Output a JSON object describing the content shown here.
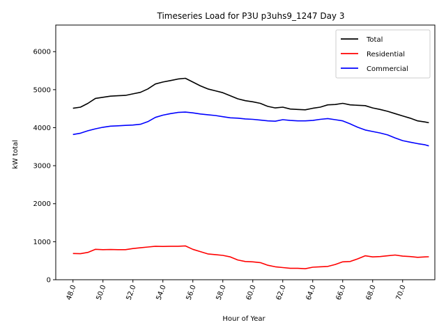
{
  "chart_data": {
    "type": "line",
    "title": "Timeseries Load for P3U p3uhs9_1247  Day 3",
    "xlabel": "Hour of Year",
    "ylabel": "kW total",
    "xlim": [
      46.85,
      72.15
    ],
    "ylim": [
      0,
      6700
    ],
    "xticks": [
      48,
      50,
      52,
      54,
      56,
      58,
      60,
      62,
      64,
      66,
      68,
      70
    ],
    "xtick_labels": [
      "48.0",
      "50.0",
      "52.0",
      "54.0",
      "56.0",
      "58.0",
      "60.0",
      "62.0",
      "64.0",
      "66.0",
      "68.0",
      "70.0"
    ],
    "yticks": [
      0,
      1000,
      2000,
      3000,
      4000,
      5000,
      6000
    ],
    "ytick_labels": [
      "0",
      "1000",
      "2000",
      "3000",
      "4000",
      "5000",
      "6000"
    ],
    "legend_position": "top-right",
    "x": [
      48.0,
      48.5,
      49.0,
      49.5,
      50.0,
      50.5,
      51.0,
      51.5,
      52.0,
      52.5,
      53.0,
      53.5,
      54.0,
      54.5,
      55.0,
      55.5,
      56.0,
      56.5,
      57.0,
      57.5,
      58.0,
      58.5,
      59.0,
      59.5,
      60.0,
      60.5,
      61.0,
      61.5,
      62.0,
      62.5,
      63.0,
      63.5,
      64.0,
      64.5,
      65.0,
      65.5,
      66.0,
      66.5,
      67.0,
      67.5,
      68.0,
      68.5,
      69.0,
      69.5,
      70.0,
      70.5,
      71.0,
      71.5,
      71.75
    ],
    "series": [
      {
        "name": "Total",
        "color": "#000000",
        "values": [
          4510,
          4540,
          4640,
          4770,
          4800,
          4830,
          4840,
          4850,
          4890,
          4930,
          5020,
          5150,
          5200,
          5240,
          5280,
          5300,
          5200,
          5100,
          5020,
          4970,
          4920,
          4840,
          4760,
          4710,
          4680,
          4640,
          4560,
          4520,
          4540,
          4490,
          4480,
          4470,
          4510,
          4540,
          4600,
          4610,
          4640,
          4600,
          4590,
          4580,
          4520,
          4480,
          4430,
          4370,
          4310,
          4250,
          4180,
          4150,
          4130
        ]
      },
      {
        "name": "Residential",
        "color": "#ff0000",
        "values": [
          690,
          685,
          720,
          800,
          790,
          795,
          790,
          790,
          820,
          840,
          860,
          880,
          875,
          880,
          880,
          890,
          800,
          740,
          680,
          660,
          640,
          600,
          520,
          480,
          470,
          450,
          380,
          340,
          320,
          300,
          300,
          290,
          330,
          340,
          350,
          400,
          470,
          480,
          550,
          630,
          600,
          610,
          630,
          650,
          620,
          610,
          590,
          600,
          605
        ]
      },
      {
        "name": "Commercial",
        "color": "#0000ff",
        "values": [
          3820,
          3855,
          3920,
          3970,
          4010,
          4040,
          4050,
          4060,
          4070,
          4090,
          4160,
          4270,
          4330,
          4370,
          4400,
          4410,
          4390,
          4360,
          4340,
          4320,
          4290,
          4260,
          4250,
          4230,
          4220,
          4200,
          4180,
          4170,
          4210,
          4190,
          4180,
          4180,
          4190,
          4220,
          4240,
          4210,
          4180,
          4100,
          4010,
          3940,
          3900,
          3860,
          3810,
          3730,
          3660,
          3620,
          3580,
          3550,
          3520
        ]
      }
    ]
  }
}
